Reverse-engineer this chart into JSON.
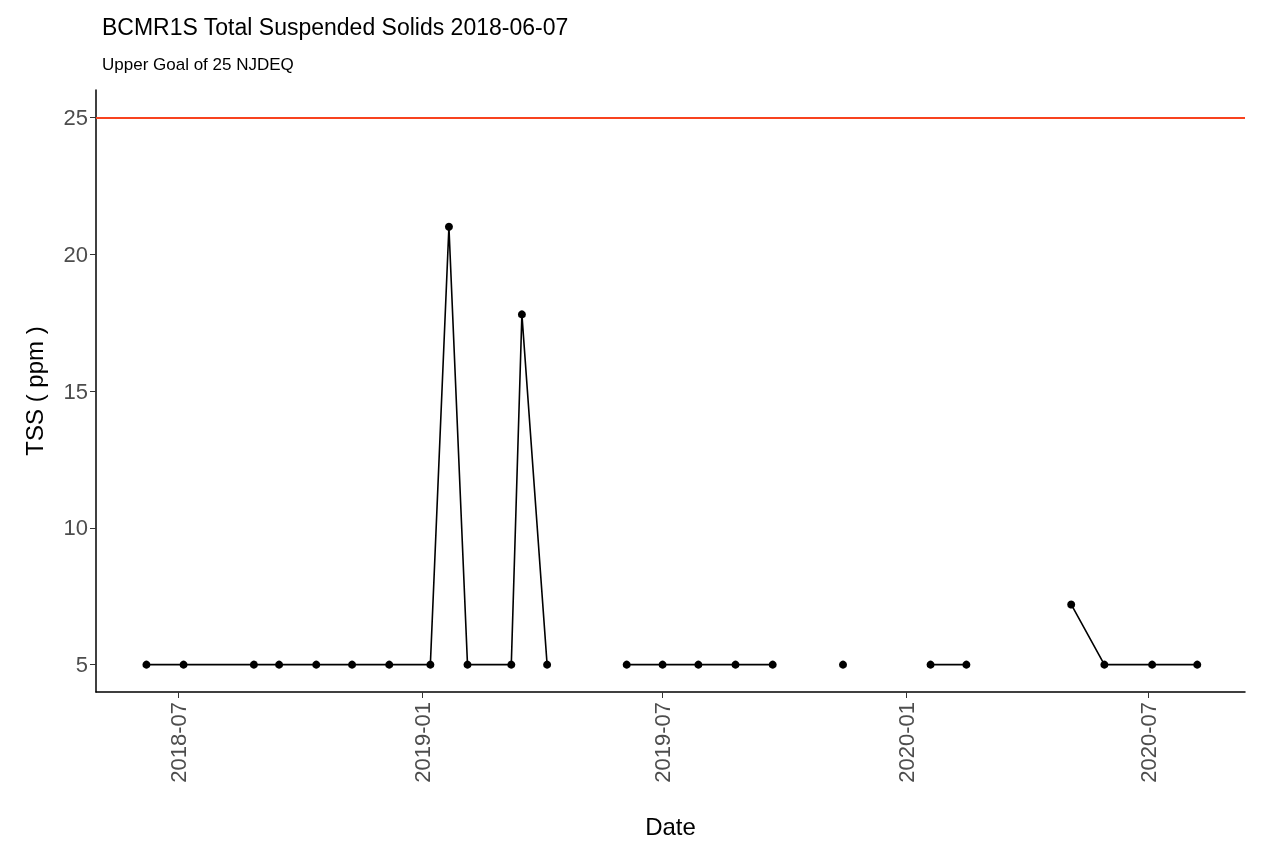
{
  "chart_data": {
    "type": "line",
    "title": "BCMR1S Total Suspended Solids 2018-06-07",
    "subtitle": "Upper Goal of 25 NJDEQ",
    "xlabel": "Date",
    "ylabel": "TSS ( ppm )",
    "x": [
      "2018-06-07",
      "2018-07-05",
      "2018-08-27",
      "2018-09-15",
      "2018-10-13",
      "2018-11-09",
      "2018-12-07",
      "2019-01-07",
      "2019-01-21",
      "2019-02-04",
      "2019-03-09",
      "2019-03-17",
      "2019-04-05",
      "2019-05-05",
      "2019-06-04",
      "2019-07-01",
      "2019-07-28",
      "2019-08-25",
      "2019-09-22",
      "2019-10-18",
      "2019-11-14",
      "2019-12-15",
      "2020-01-19",
      "2020-02-15",
      "2020-04-01",
      "2020-05-04",
      "2020-05-29",
      "2020-07-04",
      "2020-08-07"
    ],
    "series": [
      {
        "color": "#000000",
        "values": [
          5,
          5,
          5,
          5,
          5,
          5,
          5,
          5,
          21,
          5,
          5,
          17.8,
          5,
          null,
          5,
          5,
          5,
          5,
          5,
          null,
          5,
          null,
          5,
          5,
          null,
          7.2,
          5,
          5,
          5
        ]
      }
    ],
    "xlim": [
      "2018-04-30",
      "2020-09-12"
    ],
    "xticks": [
      {
        "value": "2018-07-01",
        "label": "2018-07"
      },
      {
        "value": "2019-01-01",
        "label": "2019-01"
      },
      {
        "value": "2019-07-01",
        "label": "2019-07"
      },
      {
        "value": "2020-01-01",
        "label": "2020-01"
      },
      {
        "value": "2020-07-01",
        "label": "2020-07"
      }
    ],
    "ylim": [
      4,
      26
    ],
    "yticks": [
      5,
      10,
      15,
      20,
      25
    ],
    "ref_lines": [
      {
        "axis": "y",
        "value": 25,
        "color": "#f8431f"
      }
    ],
    "marker": "circle",
    "line_style": "solid",
    "grid": false
  }
}
